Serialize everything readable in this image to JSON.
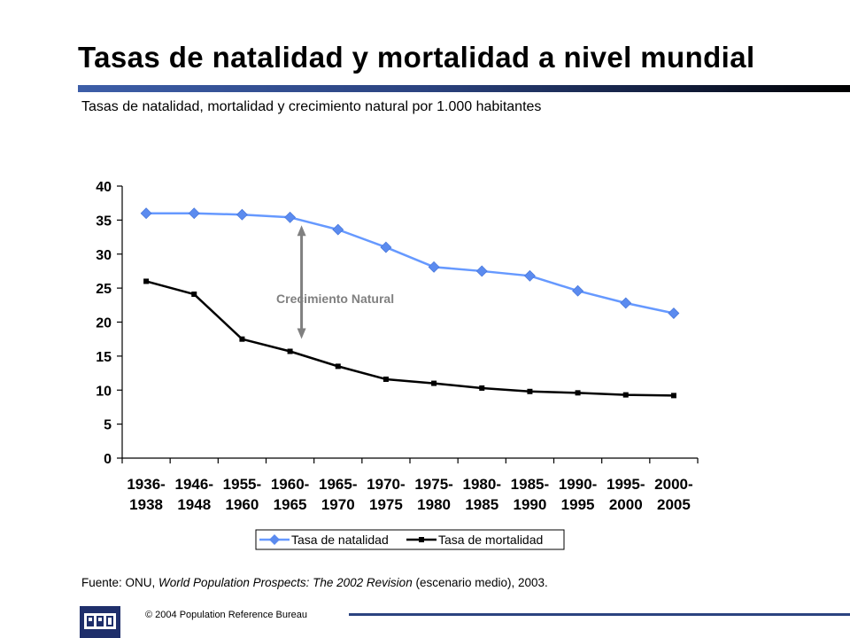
{
  "slide": {
    "title": "Tasas de natalidad y mortalidad a nivel mundial",
    "subtitle": "Tasas de natalidad, mortalidad y crecimiento natural por 1.000 habitantes",
    "source_prefix": "Fuente: ONU, ",
    "source_italic": "World Population Prospects: The 2002 Revision",
    "source_suffix": " (escenario medio), 2003.",
    "copyright": "© 2004 Population Reference Bureau",
    "logo_text": "PRB"
  },
  "colors": {
    "natalidad": "#6699ff",
    "natalidad_marker": "#5b8bef",
    "mortalidad": "#000000",
    "annotation": "#808080"
  },
  "chart_data": {
    "type": "line",
    "categories": [
      [
        "1936-",
        "1938"
      ],
      [
        "1946-",
        "1948"
      ],
      [
        "1955-",
        "1960"
      ],
      [
        "1960-",
        "1965"
      ],
      [
        "1965-",
        "1970"
      ],
      [
        "1970-",
        "1975"
      ],
      [
        "1975-",
        "1980"
      ],
      [
        "1980-",
        "1985"
      ],
      [
        "1985-",
        "1990"
      ],
      [
        "1990-",
        "1995"
      ],
      [
        "1995-",
        "2000"
      ],
      [
        "2000-",
        "2005"
      ]
    ],
    "series": [
      {
        "name": "Tasa de natalidad",
        "values": [
          36,
          36,
          35.8,
          35.4,
          33.6,
          31,
          28.1,
          27.5,
          26.8,
          24.6,
          22.8,
          21.3
        ]
      },
      {
        "name": "Tasa de mortalidad",
        "values": [
          26,
          24.1,
          17.5,
          15.7,
          13.5,
          11.6,
          11,
          10.3,
          9.8,
          9.6,
          9.3,
          9.2
        ]
      }
    ],
    "ylim": [
      0,
      40
    ],
    "yticks": [
      0,
      5,
      10,
      15,
      20,
      25,
      30,
      35,
      40
    ],
    "annotation": "Crecimiento Natural",
    "legend": "bottom-center",
    "grid": false
  }
}
